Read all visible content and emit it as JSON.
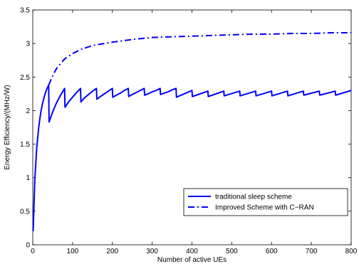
{
  "chart_data": {
    "type": "line",
    "xlabel": "Number of active UEs",
    "ylabel": "Energy Efficiency/(MHz/W)",
    "xlim": [
      0,
      800
    ],
    "ylim": [
      0,
      3.5
    ],
    "xticks": [
      0,
      100,
      200,
      300,
      400,
      500,
      600,
      700,
      800
    ],
    "yticks": [
      0,
      0.5,
      1,
      1.5,
      2,
      2.5,
      3,
      3.5
    ],
    "grid": false,
    "legend_position": "bottom-right",
    "series": [
      {
        "name": "traditional sleep scheme",
        "style": "solid",
        "color": "#0000ff",
        "x": [
          1,
          5,
          10,
          15,
          20,
          25,
          30,
          35,
          40,
          41,
          50,
          60,
          70,
          80,
          81,
          90,
          100,
          110,
          120,
          121,
          130,
          140,
          150,
          160,
          161,
          170,
          180,
          190,
          200,
          201,
          210,
          220,
          230,
          240,
          241,
          250,
          260,
          270,
          280,
          281,
          290,
          300,
          310,
          320,
          321,
          330,
          340,
          350,
          360,
          361,
          400,
          401,
          440,
          441,
          480,
          481,
          520,
          521,
          560,
          561,
          600,
          601,
          640,
          641,
          680,
          681,
          720,
          721,
          760,
          761,
          800
        ],
        "y": [
          0.2,
          0.95,
          1.45,
          1.75,
          1.97,
          2.12,
          2.23,
          2.32,
          2.38,
          1.83,
          1.98,
          2.12,
          2.23,
          2.33,
          2.05,
          2.13,
          2.2,
          2.27,
          2.33,
          2.13,
          2.19,
          2.24,
          2.29,
          2.33,
          2.17,
          2.21,
          2.25,
          2.29,
          2.33,
          2.2,
          2.23,
          2.26,
          2.3,
          2.33,
          2.21,
          2.24,
          2.27,
          2.3,
          2.33,
          2.23,
          2.25,
          2.28,
          2.3,
          2.33,
          2.24,
          2.26,
          2.28,
          2.31,
          2.33,
          2.2,
          2.3,
          2.21,
          2.29,
          2.21,
          2.29,
          2.22,
          2.29,
          2.22,
          2.29,
          2.22,
          2.29,
          2.22,
          2.29,
          2.22,
          2.29,
          2.23,
          2.29,
          2.23,
          2.29,
          2.23,
          2.3
        ]
      },
      {
        "name": "Improved Scheme with C−RAN",
        "style": "dashdot",
        "color": "#0000ff",
        "x": [
          40,
          50,
          60,
          80,
          100,
          120,
          150,
          200,
          250,
          300,
          350,
          400,
          450,
          500,
          550,
          600,
          650,
          700,
          750,
          800
        ],
        "y": [
          2.38,
          2.52,
          2.63,
          2.77,
          2.85,
          2.91,
          2.97,
          3.02,
          3.06,
          3.09,
          3.1,
          3.11,
          3.12,
          3.13,
          3.14,
          3.14,
          3.15,
          3.15,
          3.16,
          3.16
        ]
      }
    ]
  }
}
